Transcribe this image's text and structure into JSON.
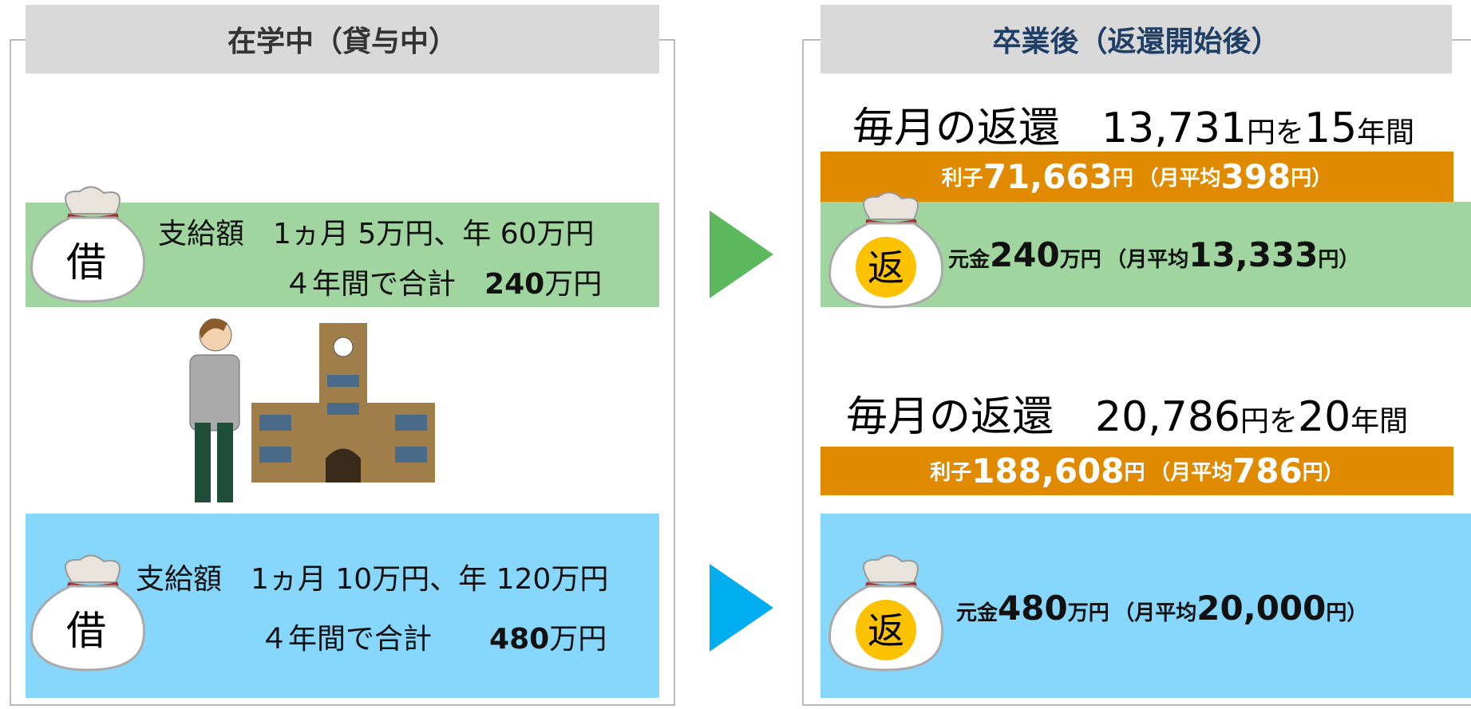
{
  "left": {
    "title": "在学中（貸与中）",
    "cases": [
      {
        "bag": "借",
        "line1": "支給額　1ヵ月 5万円、年 60万円",
        "line2": "４年間で合計",
        "total": "240",
        "unit": "万円"
      },
      {
        "bag": "借",
        "line1": "支給額　1ヵ月 10万円、年 120万円",
        "line2": "４年間で合計",
        "total": "480",
        "unit": "万円"
      }
    ]
  },
  "right": {
    "title": "卒業後（返還開始後）",
    "cases": [
      {
        "monthly": {
          "prefix": "毎月の返還",
          "amount": "13,731",
          "unit": "円を",
          "years": "15",
          "years_unit": "年間"
        },
        "interest": {
          "label": "利子",
          "amount": "71,663",
          "unit": "円",
          "avg": "（月平均",
          "avg_amount": "398",
          "avg_unit": "円）"
        },
        "principal": {
          "label": "元金",
          "amount": "240",
          "unit": "万円",
          "avg": "（月平均",
          "avg_amount": "13,333",
          "avg_unit": "円）"
        },
        "bag": "返"
      },
      {
        "monthly": {
          "prefix": "毎月の返還",
          "amount": "20,786",
          "unit": "円を",
          "years": "20",
          "years_unit": "年間"
        },
        "interest": {
          "label": "利子",
          "amount": "188,608",
          "unit": "円",
          "avg": "（月平均",
          "avg_amount": "786",
          "avg_unit": "円）"
        },
        "principal": {
          "label": "元金",
          "amount": "480",
          "unit": "万円",
          "avg": "（月平均",
          "avg_amount": "20,000",
          "avg_unit": "円）"
        },
        "bag": "返"
      }
    ]
  }
}
